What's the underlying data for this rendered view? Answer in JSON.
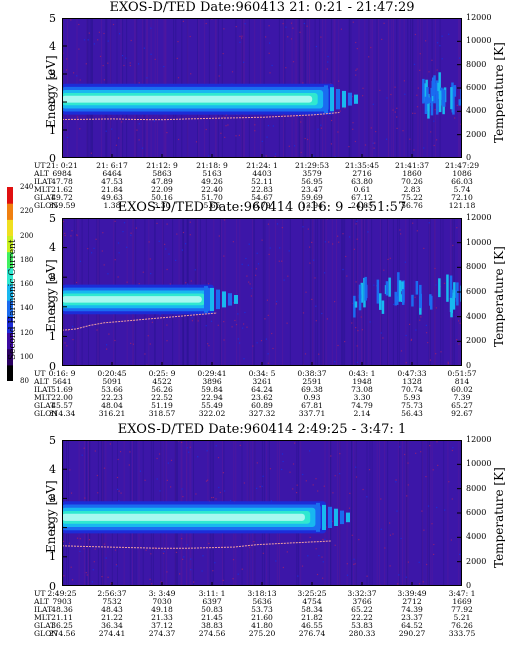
{
  "chart_data": [
    {
      "type": "heatmap",
      "title": "EXOS-D/TED   Date:960413  21: 0:21 - 21:47:29",
      "ylabel": "Energy [eV]",
      "y2label": "Temperature [K]",
      "ylim": [
        0,
        5
      ],
      "y2lim": [
        0,
        12000
      ],
      "yticks": [
        "0",
        "1",
        "2",
        "3",
        "4",
        "5"
      ],
      "y2ticks": [
        "0",
        "2000",
        "4000",
        "6000",
        "8000",
        "10000",
        "12000"
      ],
      "band": {
        "center_ev": 2.1,
        "halfwidth_ev": 0.55,
        "end_fraction": 0.68,
        "late_patch_start": 0.9
      },
      "temperature_K": [
        3300,
        3320,
        3350,
        3300,
        3280,
        3350,
        3400,
        3450,
        3500,
        3600,
        3700,
        3900
      ],
      "table": {
        "labels": [
          "UT",
          "ALT",
          "ILAT",
          "MLT",
          "GLAT",
          "GLON"
        ],
        "columns": [
          [
            "21: 0:21",
            "6984",
            "47.78",
            "21.62",
            "49.72",
            "359.59"
          ],
          [
            "21: 6:17",
            "6464",
            "47.53",
            "21.84",
            "49.63",
            "1.38"
          ],
          [
            "21:12: 9",
            "5863",
            "47.89",
            "22.09",
            "50.16",
            "3.30"
          ],
          [
            "21:18: 9",
            "5163",
            "49.26",
            "22.40",
            "51.70",
            "5.65"
          ],
          [
            "21:24: 1",
            "4403",
            "52.11",
            "22.83",
            "54.67",
            "8.79"
          ],
          [
            "21:29:53",
            "3579",
            "56.95",
            "23.47",
            "59.69",
            "13.94"
          ],
          [
            "21:35:45",
            "2716",
            "63.80",
            "0.61",
            "67.12",
            "24.85"
          ],
          [
            "21:41:37",
            "1860",
            "70.26",
            "2.83",
            "75.22",
            "56.76"
          ],
          [
            "21:47:29",
            "1086",
            "66.03",
            "5.74",
            "72.10",
            "121.18"
          ]
        ]
      }
    },
    {
      "type": "heatmap",
      "title": "EXOS-D/TED   Date:960414   0:16: 9 - 0:51:57",
      "ylabel": "Energy [eV]",
      "y2label": "Temperature [K]",
      "ylim": [
        0,
        5
      ],
      "y2lim": [
        0,
        12000
      ],
      "yticks": [
        "0",
        "1",
        "2",
        "3",
        "4",
        "5"
      ],
      "y2ticks": [
        "0",
        "2000",
        "4000",
        "6000",
        "8000",
        "10000",
        "12000"
      ],
      "band": {
        "center_ev": 2.25,
        "halfwidth_ev": 0.5,
        "end_fraction": 0.38,
        "late_patch_start": 0.72
      },
      "temperature_K": [
        2900,
        3000,
        3300,
        3500,
        3600,
        3700,
        3800,
        3900,
        4000,
        4100,
        4200,
        4300
      ],
      "table": {
        "labels": [
          "UT",
          "ALT",
          "ILAT",
          "MLT",
          "GLAT",
          "GLON"
        ],
        "columns": [
          [
            "0:16: 9",
            "5641",
            "51.69",
            "22.00",
            "45.57",
            "314.34"
          ],
          [
            "0:20:45",
            "5091",
            "53.66",
            "22.23",
            "48.04",
            "316.21"
          ],
          [
            "0:25: 9",
            "4522",
            "56.26",
            "22.52",
            "51.19",
            "318.57"
          ],
          [
            "0:29:41",
            "3896",
            "59.84",
            "22.94",
            "55.49",
            "322.02"
          ],
          [
            "0:34: 5",
            "3261",
            "64.24",
            "23.62",
            "60.89",
            "327.32"
          ],
          [
            "0:38:37",
            "2591",
            "69.38",
            "0.93",
            "67.81",
            "337.71"
          ],
          [
            "0:43: 1",
            "1948",
            "73.08",
            "3.30",
            "74.79",
            "2.14"
          ],
          [
            "0:47:33",
            "1328",
            "70.74",
            "5.93",
            "75.73",
            "56.43"
          ],
          [
            "0:51:57",
            "814",
            "60.02",
            "7.39",
            "65.27",
            "92.67"
          ]
        ]
      }
    },
    {
      "type": "heatmap",
      "title": "EXOS-D/TED   Date:960414   2:49:25 - 3:47: 1",
      "ylabel": "Energy [eV]",
      "y2label": "Temperature [K]",
      "ylim": [
        0,
        5
      ],
      "y2lim": [
        0,
        12000
      ],
      "yticks": [
        "0",
        "1",
        "2",
        "3",
        "4",
        "5"
      ],
      "y2ticks": [
        "0",
        "2000",
        "4000",
        "6000",
        "8000",
        "10000",
        "12000"
      ],
      "band": {
        "center_ev": 2.35,
        "halfwidth_ev": 0.55,
        "end_fraction": 0.66,
        "late_patch_start": 1.0
      },
      "temperature_K": [
        3300,
        3250,
        3200,
        3150,
        3100,
        3100,
        3150,
        3200,
        3400,
        3500,
        3600,
        3700
      ],
      "table": {
        "labels": [
          "UT",
          "ALT",
          "ILAT",
          "MLT",
          "GLAT",
          "GLON"
        ],
        "columns": [
          [
            "2:49:25",
            "7903",
            "48.36",
            "21.11",
            "36.25",
            "274.56"
          ],
          [
            "2:56:37",
            "7532",
            "48.43",
            "21.22",
            "36.34",
            "274.41"
          ],
          [
            "3: 3:49",
            "7030",
            "49.18",
            "21.33",
            "37.12",
            "274.37"
          ],
          [
            "3:11: 1",
            "6397",
            "50.83",
            "21.45",
            "38.83",
            "274.56"
          ],
          [
            "3:18:13",
            "5636",
            "53.73",
            "21.60",
            "41.80",
            "275.20"
          ],
          [
            "3:25:25",
            "4754",
            "58.34",
            "21.82",
            "46.55",
            "276.74"
          ],
          [
            "3:32:37",
            "3766",
            "65.22",
            "22.22",
            "53.83",
            "280.33"
          ],
          [
            "3:39:49",
            "2712",
            "74.39",
            "23.37",
            "64.52",
            "290.27"
          ],
          [
            "3:47: 1",
            "1669",
            "77.92",
            "5.21",
            "76.26",
            "333.75"
          ]
        ]
      }
    }
  ],
  "colorbar": {
    "label": "Second Harmonic Current",
    "ticks": [
      "240",
      "220",
      "200",
      "180",
      "160",
      "140",
      "120",
      "100",
      "80"
    ],
    "colors": [
      "#000000",
      "#2a0060",
      "#3c0aa0",
      "#1c2cd8",
      "#1a6cf0",
      "#18b8f0",
      "#30e8d0",
      "#40f060",
      "#c8f020",
      "#f0e020",
      "#f08010",
      "#e01010"
    ]
  }
}
